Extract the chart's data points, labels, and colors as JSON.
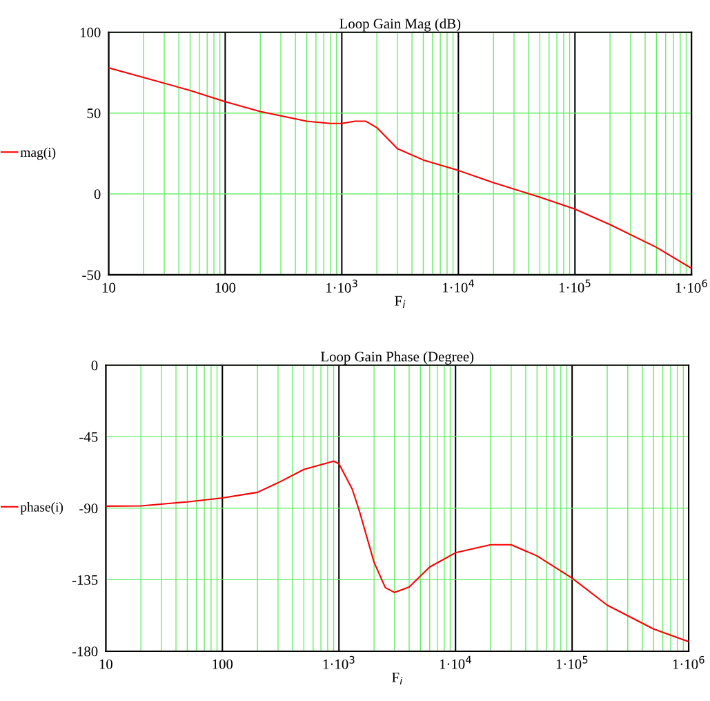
{
  "chart_data": [
    {
      "type": "line",
      "title": "Loop Gain Mag (dB)",
      "xlabel": "F$_{i}$",
      "log": "x",
      "grid": true,
      "legend": "left",
      "marker": "none",
      "line_style": "solid",
      "x": [
        10,
        20,
        50,
        100,
        200,
        500,
        800,
        1000,
        1300,
        1600,
        2000,
        3000,
        5000,
        10000,
        20000,
        50000,
        100000,
        200000,
        500000,
        1000000
      ],
      "series": [
        {
          "name": "mag(i)",
          "color": "#ff0000",
          "values": [
            78,
            72,
            64,
            57,
            51,
            45,
            43.6,
            43.6,
            45,
            45,
            41,
            28,
            21,
            14.5,
            7,
            -2,
            -9.4,
            -19,
            -33,
            -46
          ]
        }
      ],
      "xlim": [
        10,
        1000000
      ],
      "ylim": [
        -50,
        100
      ],
      "xticks": [
        10,
        100,
        {
          "value": 1000,
          "label": "1·10$^{3}$"
        },
        {
          "value": 10000,
          "label": "1·10$^{4}$"
        },
        {
          "value": 100000,
          "label": "1·10$^{5}$"
        },
        {
          "value": 1000000,
          "label": "1·10$^{6}$"
        }
      ],
      "yticks": [
        -50,
        0,
        50,
        100
      ]
    },
    {
      "type": "line",
      "title": "Loop Gain Phase (Degree)",
      "xlabel": "F$_{i}$",
      "log": "x",
      "grid": true,
      "legend": "left",
      "marker": "none",
      "line_style": "solid",
      "x": [
        10,
        20,
        50,
        100,
        200,
        300,
        500,
        900,
        1000,
        1300,
        1500,
        2000,
        2500,
        3000,
        4000,
        6000,
        10000,
        20000,
        30000,
        50000,
        100000,
        200000,
        500000,
        1000000
      ],
      "series": [
        {
          "name": "phase(i)",
          "color": "#ff0000",
          "values": [
            -88.7,
            -88.5,
            -86,
            -83.5,
            -80,
            -74,
            -65.6,
            -60.4,
            -62,
            -78,
            -92,
            -124,
            -140,
            -143,
            -139.6,
            -127,
            -118,
            -113,
            -113,
            -120,
            -134,
            -151,
            -166,
            -174
          ]
        }
      ],
      "xlim": [
        10,
        1000000
      ],
      "ylim": [
        -180,
        0
      ],
      "xticks": [
        10,
        100,
        {
          "value": 1000,
          "label": "1·10$^{3}$"
        },
        {
          "value": 10000,
          "label": "1·10$^{4}$"
        },
        {
          "value": 100000,
          "label": "1·10$^{5}$"
        },
        {
          "value": 1000000,
          "label": "1·10$^{6}$"
        }
      ],
      "yticks": [
        -180,
        -135,
        -90,
        -45,
        0
      ]
    }
  ]
}
